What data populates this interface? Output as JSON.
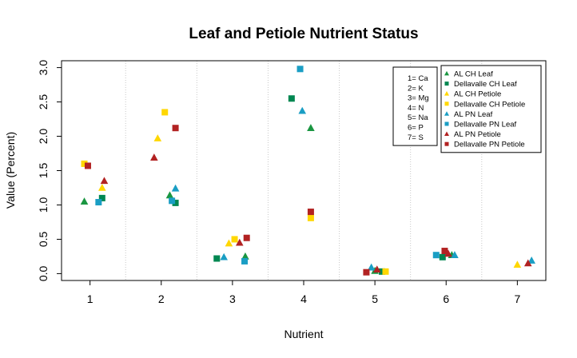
{
  "chart_data": {
    "type": "scatter",
    "title": "Leaf and Petiole Nutrient Status",
    "xlabel": "Nutrient",
    "ylabel": "Value (Percent)",
    "x_ticks": [
      "1",
      "2",
      "3",
      "4",
      "5",
      "6",
      "7"
    ],
    "y_ticks": [
      "0.0",
      "0.5",
      "1.0",
      "1.5",
      "2.0",
      "2.5",
      "3.0"
    ],
    "xlim": [
      0.6,
      7.4
    ],
    "ylim": [
      -0.1,
      3.1
    ],
    "grid": "vertical dotted separators between nutrients",
    "nutrient_key": [
      "1= Ca",
      "2= K",
      "3= Mg",
      "4= N",
      "5= Na",
      "6= P",
      "7= S"
    ],
    "legend_position": "top-right",
    "series": [
      {
        "name": "AL CH Leaf",
        "color": "#1a9641",
        "marker": "triangle",
        "points": [
          [
            0.92,
            1.05
          ],
          [
            2.12,
            1.14
          ],
          [
            3.18,
            0.25
          ],
          [
            4.1,
            2.12
          ],
          [
            5.0,
            0.04
          ],
          [
            6.08,
            0.27
          ]
        ]
      },
      {
        "name": "Dellavalle CH Leaf",
        "color": "#008751",
        "marker": "square",
        "points": [
          [
            1.17,
            1.1
          ],
          [
            2.2,
            1.03
          ],
          [
            2.78,
            0.22
          ],
          [
            3.83,
            2.55
          ],
          [
            5.1,
            0.03
          ],
          [
            5.95,
            0.24
          ]
        ]
      },
      {
        "name": "AL CH Petiole",
        "color": "#ffd700",
        "marker": "triangle",
        "points": [
          [
            1.17,
            1.25
          ],
          [
            1.95,
            1.97
          ],
          [
            2.95,
            0.44
          ],
          [
            7.0,
            0.13
          ]
        ]
      },
      {
        "name": "Dellavalle CH Petiole",
        "color": "#ffd700",
        "marker": "square",
        "points": [
          [
            0.92,
            1.6
          ],
          [
            2.05,
            2.35
          ],
          [
            3.03,
            0.5
          ],
          [
            4.1,
            0.81
          ],
          [
            5.15,
            0.03
          ]
        ]
      },
      {
        "name": "AL PN Leaf",
        "color": "#1a9ec4",
        "marker": "triangle",
        "points": [
          [
            2.2,
            1.24
          ],
          [
            2.88,
            0.24
          ],
          [
            3.98,
            2.37
          ],
          [
            4.95,
            0.09
          ],
          [
            6.12,
            0.27
          ],
          [
            7.2,
            0.19
          ]
        ]
      },
      {
        "name": "Dellavalle PN Leaf",
        "color": "#1a9ec4",
        "marker": "square",
        "points": [
          [
            1.12,
            1.04
          ],
          [
            2.15,
            1.06
          ],
          [
            3.17,
            0.18
          ],
          [
            3.95,
            2.98
          ],
          [
            5.86,
            0.27
          ]
        ]
      },
      {
        "name": "AL PN Petiole",
        "color": "#b22222",
        "marker": "triangle",
        "points": [
          [
            1.2,
            1.35
          ],
          [
            1.9,
            1.69
          ],
          [
            3.1,
            0.45
          ],
          [
            5.03,
            0.06
          ],
          [
            6.03,
            0.29
          ],
          [
            7.15,
            0.15
          ]
        ]
      },
      {
        "name": "Dellavalle PN Petiole",
        "color": "#b22222",
        "marker": "square",
        "points": [
          [
            0.97,
            1.57
          ],
          [
            2.2,
            2.12
          ],
          [
            3.2,
            0.52
          ],
          [
            4.1,
            0.9
          ],
          [
            4.88,
            0.02
          ],
          [
            5.98,
            0.33
          ]
        ]
      }
    ]
  }
}
